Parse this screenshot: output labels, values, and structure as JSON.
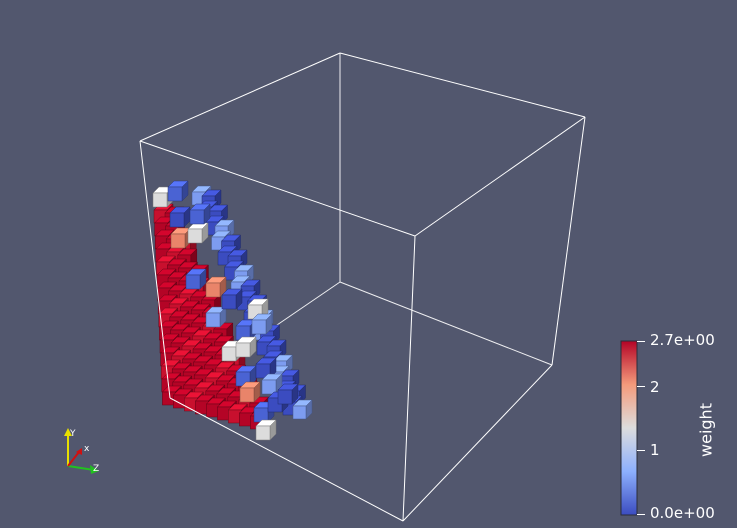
{
  "colormap": {
    "title": "weight",
    "max_label": "2.7e+00",
    "min_label": "0.0e+00",
    "ticks": [
      {
        "label": "2",
        "value": 2
      },
      {
        "label": "1",
        "value": 1
      }
    ],
    "min_value": 0.0,
    "max_value": 2.7,
    "colors": [
      "#3b4cc0",
      "#8db0fe",
      "#dddddd",
      "#f49a7b",
      "#b40426"
    ]
  },
  "orientation_axes": {
    "x_label": "x",
    "y_label": "Y",
    "z_label": "Z"
  },
  "colors": {
    "background": "#52576e",
    "outline": "#ffffff",
    "high": "#b40426",
    "low": "#3b4cc0"
  }
}
